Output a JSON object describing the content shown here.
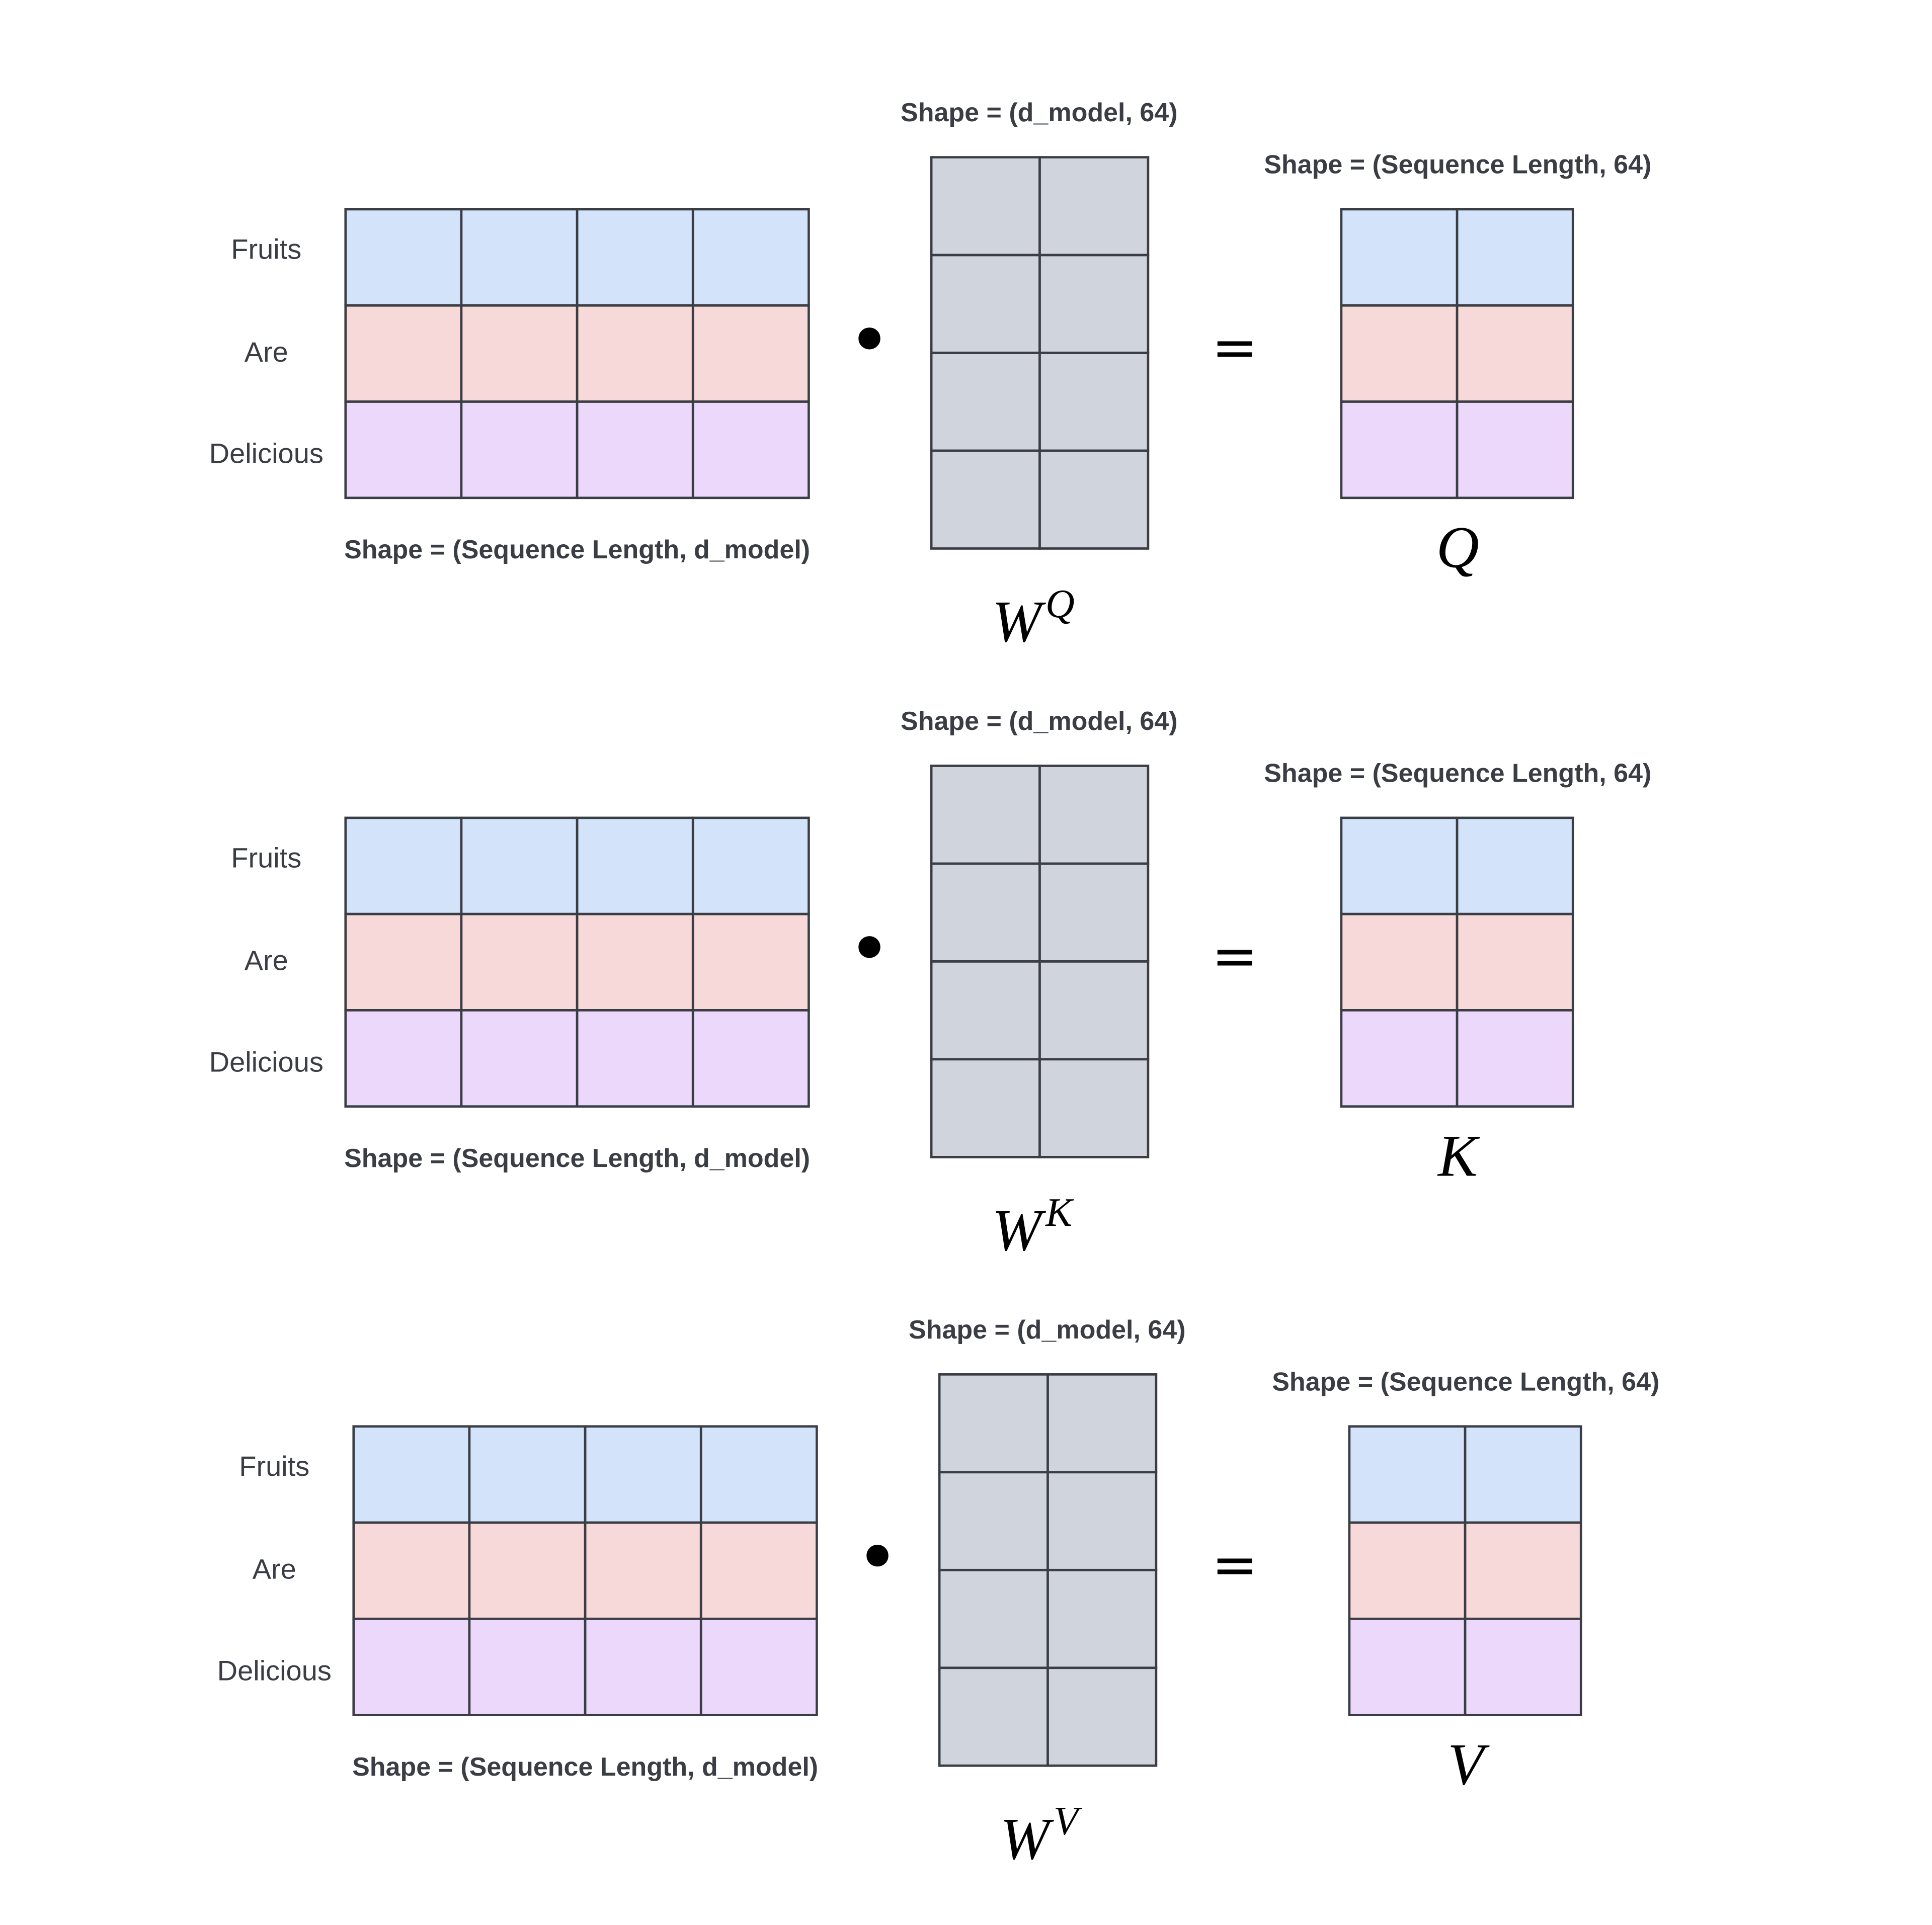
{
  "colors": {
    "row_fruits": "#d2e3fa",
    "row_are": "#f7d9d9",
    "row_delicious": "#ecd8fa",
    "weight_cell": "#d0d4dc",
    "border": "#3a3d44"
  },
  "tokens": [
    "Fruits",
    "Are",
    "Delicious"
  ],
  "blocks": [
    {
      "input_shape": "Shape = (Sequence Length, d_model)",
      "weight_shape": "Shape = (d_model, 64)",
      "weight_symbol": "W",
      "weight_superscript": "Q",
      "operator": "•",
      "equals": "=",
      "output_shape": "Shape = (Sequence Length,  64)",
      "output_symbol": "Q"
    },
    {
      "input_shape": "Shape = (Sequence Length, d_model)",
      "weight_shape": "Shape = (d_model, 64)",
      "weight_symbol": "W",
      "weight_superscript": "K",
      "operator": "•",
      "equals": "=",
      "output_shape": "Shape = (Sequence Length,  64)",
      "output_symbol": "K"
    },
    {
      "input_shape": "Shape = (Sequence Length, d_model)",
      "weight_shape": "Shape = (d_model, 64)",
      "weight_symbol": "W",
      "weight_superscript": "V",
      "operator": "•",
      "equals": "=",
      "output_shape": "Shape = (Sequence Length,  64)",
      "output_symbol": "V"
    }
  ]
}
